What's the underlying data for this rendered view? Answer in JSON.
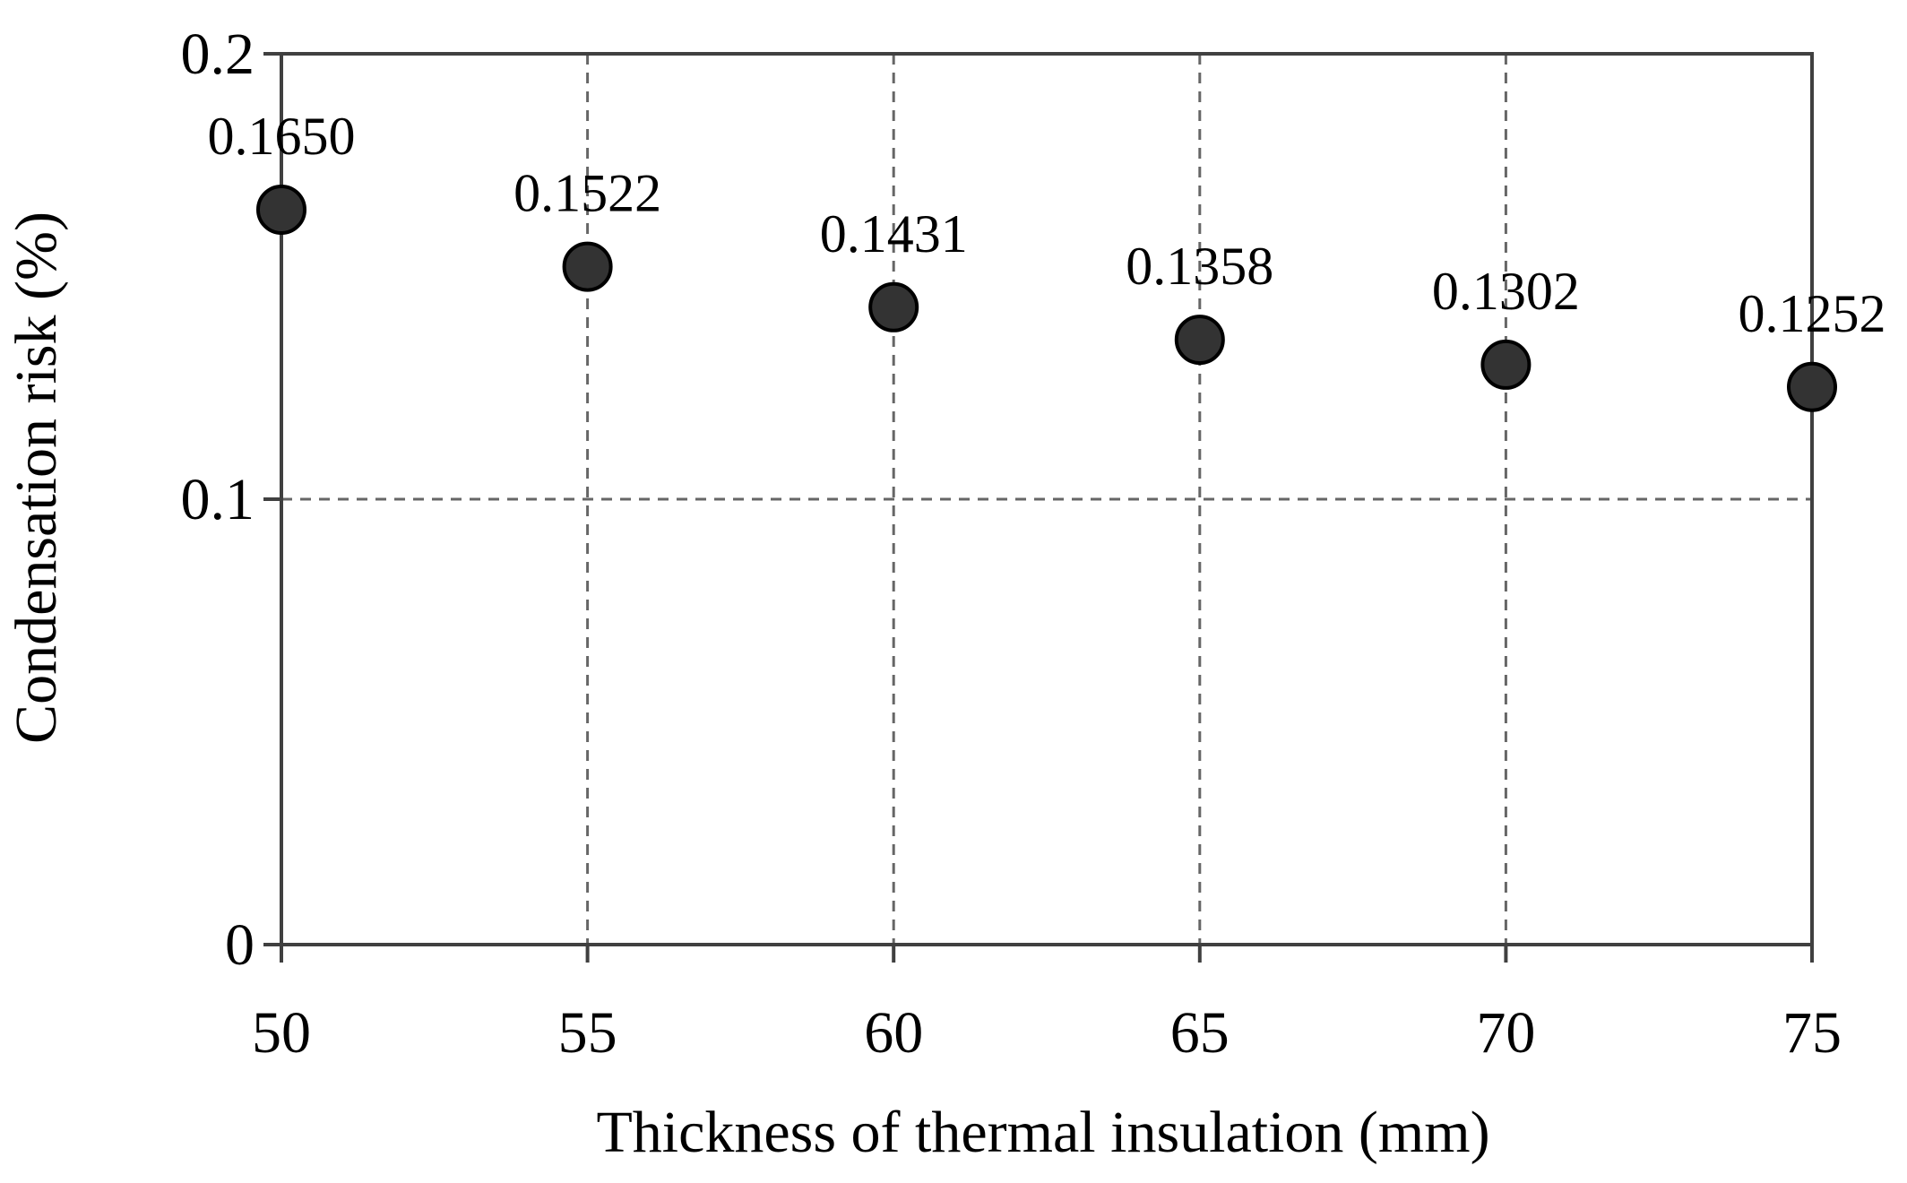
{
  "chart_data": {
    "type": "scatter",
    "title": "",
    "xlabel": "Thickness of thermal insulation  (mm)",
    "ylabel": "Condensation risk (%)",
    "x": [
      50,
      55,
      60,
      65,
      70,
      75
    ],
    "series": [
      {
        "name": "Condensation risk",
        "values": [
          0.165,
          0.1522,
          0.1431,
          0.1358,
          0.1302,
          0.1252
        ],
        "labels": [
          "0.1650",
          "0.1522",
          "0.1431",
          "0.1358",
          "0.1302",
          "0.1252"
        ]
      }
    ],
    "xlim": [
      50,
      75
    ],
    "ylim": [
      0,
      0.2
    ],
    "xticks": [
      50,
      55,
      60,
      65,
      70,
      75
    ],
    "xtick_labels": [
      "50",
      "55",
      "60",
      "65",
      "70",
      "75"
    ],
    "yticks": [
      0,
      0.1,
      0.2
    ],
    "ytick_labels": [
      "0",
      "0.1",
      "0.2"
    ],
    "grid": true,
    "legend": "none",
    "colors": {
      "marker_fill": "#333333",
      "marker_stroke": "#000000",
      "grid": "#666666",
      "axis": "#404040"
    }
  }
}
